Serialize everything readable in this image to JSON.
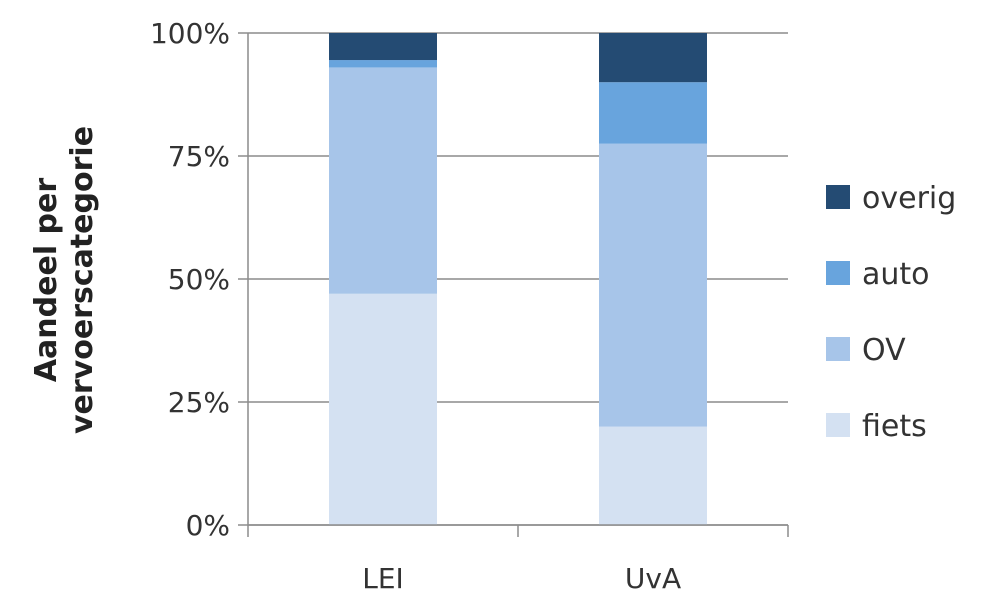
{
  "chart_data": {
    "type": "bar",
    "stacked": true,
    "categories": [
      "LEI",
      "UvA"
    ],
    "series": [
      {
        "name": "fiets",
        "color": "#d4e1f2",
        "values": [
          47,
          20
        ]
      },
      {
        "name": "OV",
        "color": "#a7c5e9",
        "values": [
          46,
          57.5
        ]
      },
      {
        "name": "auto",
        "color": "#68a4dd",
        "values": [
          1.5,
          12.5
        ]
      },
      {
        "name": "overig",
        "color": "#244b73",
        "values": [
          5.5,
          10
        ]
      }
    ],
    "yticks": [
      "0%",
      "25%",
      "50%",
      "75%",
      "100%"
    ],
    "ylim": [
      0,
      100
    ],
    "ylabel_lines": [
      "Aandeel per",
      "vervoerscategorie"
    ],
    "xlabel": "",
    "title": "",
    "grid": true,
    "legend_position": "right"
  }
}
